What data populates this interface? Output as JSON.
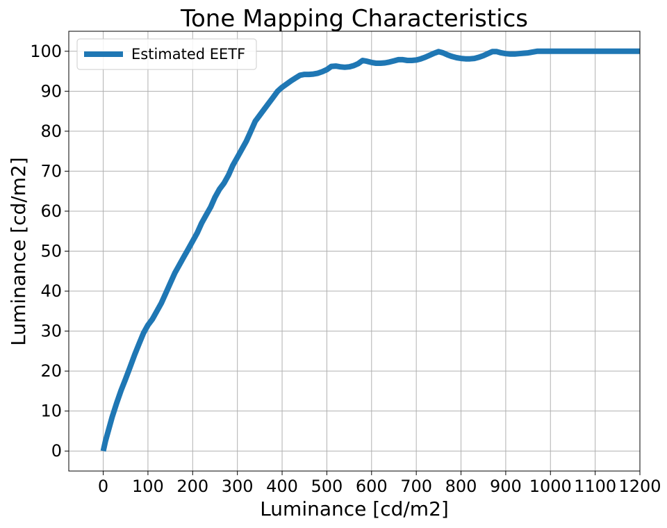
{
  "chart_data": {
    "type": "line",
    "title": "Tone Mapping Characteristics",
    "xlabel": "Luminance [cd/m2]",
    "ylabel": "Luminance [cd/m2]",
    "xlim": [
      -77,
      1200
    ],
    "ylim": [
      -5,
      105
    ],
    "xticks": [
      0,
      100,
      200,
      300,
      400,
      500,
      600,
      700,
      800,
      900,
      1000,
      1100,
      1200
    ],
    "yticks": [
      0,
      10,
      20,
      30,
      40,
      50,
      60,
      70,
      80,
      90,
      100
    ],
    "grid": true,
    "legend_position": "top-left",
    "series": [
      {
        "name": "Estimated EETF",
        "color": "#1f77b4",
        "x": [
          0,
          5,
          10,
          20,
          30,
          40,
          50,
          60,
          70,
          80,
          90,
          100,
          110,
          120,
          130,
          140,
          150,
          160,
          170,
          180,
          190,
          200,
          210,
          220,
          230,
          240,
          250,
          260,
          270,
          280,
          290,
          300,
          310,
          320,
          330,
          340,
          350,
          360,
          370,
          380,
          390,
          400,
          410,
          420,
          430,
          440,
          450,
          460,
          470,
          480,
          490,
          500,
          510,
          520,
          530,
          540,
          550,
          560,
          570,
          580,
          590,
          600,
          610,
          620,
          630,
          640,
          650,
          660,
          670,
          680,
          690,
          700,
          710,
          720,
          730,
          740,
          750,
          760,
          770,
          780,
          790,
          800,
          810,
          820,
          830,
          840,
          850,
          860,
          870,
          880,
          890,
          900,
          910,
          920,
          930,
          940,
          950,
          960,
          970,
          980,
          990,
          1000,
          1020,
          1040,
          1060,
          1080,
          1100,
          1120,
          1140,
          1160,
          1180,
          1200
        ],
        "y": [
          0,
          2.5,
          4.5,
          8.5,
          12,
          15.2,
          18,
          21,
          24,
          26.8,
          29.5,
          31.5,
          33,
          35,
          37,
          39.5,
          42,
          44.5,
          46.5,
          48.5,
          50.5,
          52.5,
          54.5,
          57,
          59,
          61,
          63.5,
          65.5,
          67,
          69,
          71.5,
          73.5,
          75.5,
          77.5,
          80,
          82.5,
          84,
          85.5,
          87,
          88.5,
          90,
          91,
          91.8,
          92.6,
          93.3,
          94,
          94.2,
          94.2,
          94.3,
          94.5,
          94.9,
          95.4,
          96.2,
          96.3,
          96.1,
          96.0,
          96.1,
          96.4,
          96.9,
          97.7,
          97.5,
          97.2,
          97.0,
          97.0,
          97.1,
          97.3,
          97.6,
          97.9,
          97.9,
          97.7,
          97.7,
          97.8,
          98.1,
          98.5,
          99.0,
          99.5,
          99.9,
          99.6,
          99.1,
          98.7,
          98.4,
          98.2,
          98.1,
          98.1,
          98.2,
          98.5,
          98.9,
          99.4,
          99.9,
          99.9,
          99.6,
          99.4,
          99.3,
          99.3,
          99.4,
          99.5,
          99.6,
          99.8,
          100,
          100,
          100,
          100,
          100,
          100,
          100,
          100,
          100,
          100,
          100,
          100,
          100,
          100
        ]
      }
    ]
  }
}
